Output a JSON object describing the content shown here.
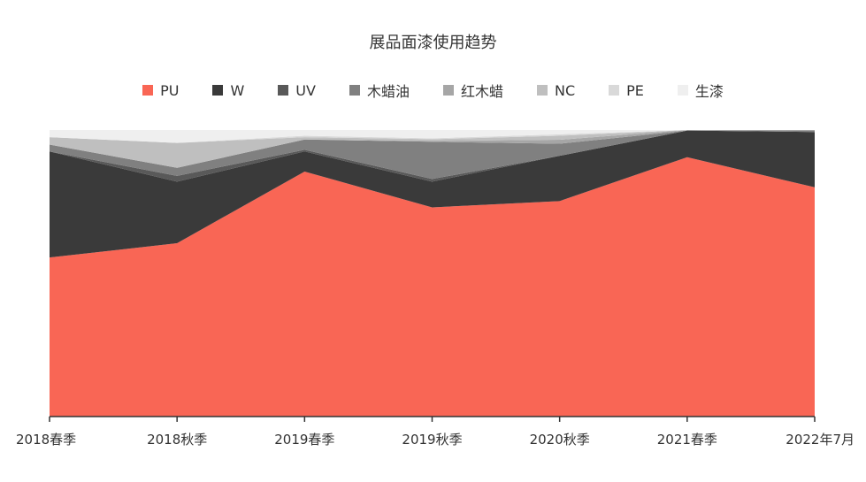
{
  "chart_data": {
    "type": "area",
    "stacked": true,
    "normalized": true,
    "title": "展品面漆使用趋势",
    "categories": [
      "2018春季",
      "2018秋季",
      "2019春季",
      "2019秋季",
      "2020秋季",
      "2021春季",
      "2022年7月"
    ],
    "legend_position": "top",
    "grid": false,
    "ylim": [
      0,
      100
    ],
    "series": [
      {
        "name": "PU",
        "color": "#F96655",
        "values": [
          55.5,
          60.5,
          85.5,
          73.0,
          75.2,
          90.5,
          80.0
        ]
      },
      {
        "name": "W",
        "color": "#3A3A3A",
        "values": [
          37.0,
          21.5,
          7.0,
          9.0,
          15.8,
          9.3,
          19.3
        ]
      },
      {
        "name": "UV",
        "color": "#595959",
        "values": [
          0.0,
          2.0,
          0.6,
          0.9,
          0.0,
          0.0,
          0.0
        ]
      },
      {
        "name": "木蜡油",
        "color": "#808080",
        "values": [
          2.4,
          2.8,
          3.6,
          13.0,
          4.2,
          0.0,
          0.5
        ]
      },
      {
        "name": "红木蜡",
        "color": "#A6A6A6",
        "values": [
          0.0,
          0.0,
          0.0,
          0.3,
          1.4,
          0.2,
          0.2
        ]
      },
      {
        "name": "NC",
        "color": "#BFBFBF",
        "values": [
          2.6,
          8.7,
          0.8,
          0.6,
          1.4,
          0.0,
          0.0
        ]
      },
      {
        "name": "PE",
        "color": "#D9D9D9",
        "values": [
          0.0,
          0.0,
          0.5,
          0.3,
          0.5,
          0.0,
          0.0
        ]
      },
      {
        "name": "生漆",
        "color": "#EFEFEF",
        "values": [
          2.5,
          4.5,
          2.0,
          2.9,
          1.5,
          0.0,
          0.0
        ]
      }
    ]
  }
}
